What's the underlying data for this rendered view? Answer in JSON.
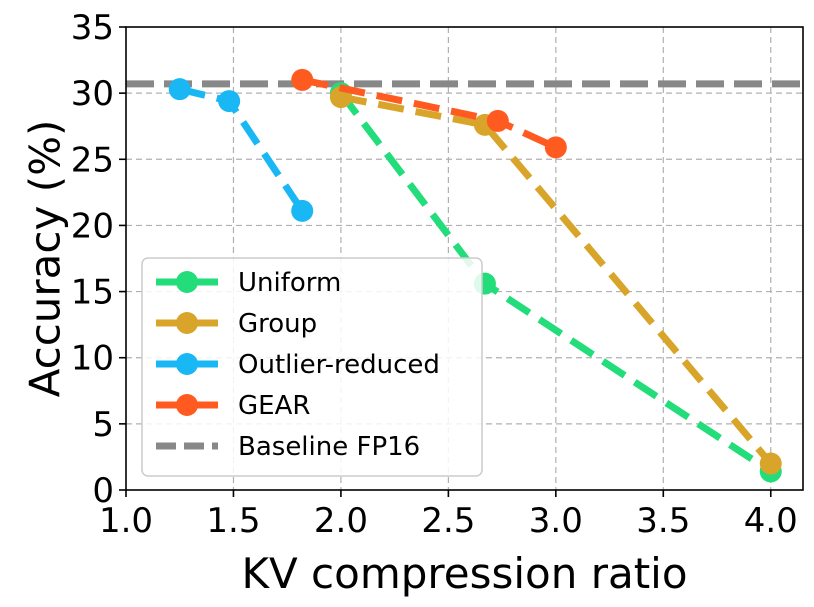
{
  "chart_data": {
    "type": "line",
    "title": "",
    "xlabel": "KV compression ratio",
    "ylabel": "Accuracy (%)",
    "xlim": [
      1.0,
      4.15
    ],
    "ylim": [
      0,
      35
    ],
    "xticks": [
      1.0,
      1.5,
      2.0,
      2.5,
      3.0,
      3.5,
      4.0
    ],
    "xtick_labels": [
      "1.0",
      "1.5",
      "2.0",
      "2.5",
      "3.0",
      "3.5",
      "4.0"
    ],
    "yticks": [
      0,
      5,
      10,
      15,
      20,
      25,
      30,
      35
    ],
    "ytick_labels": [
      "0",
      "5",
      "10",
      "15",
      "20",
      "25",
      "30",
      "35"
    ],
    "grid": true,
    "legend_position": "lower-left",
    "series": [
      {
        "name": "Uniform",
        "color": "#22dd7a",
        "x": [
          2.0,
          2.67,
          4.0
        ],
        "y": [
          30.0,
          15.6,
          1.4
        ]
      },
      {
        "name": "Group",
        "color": "#d8a52a",
        "x": [
          2.0,
          2.67,
          4.0
        ],
        "y": [
          29.7,
          27.6,
          2.0
        ]
      },
      {
        "name": "Outlier-reduced",
        "color": "#1ab7f5",
        "x": [
          1.25,
          1.48,
          1.82
        ],
        "y": [
          30.3,
          29.4,
          21.1
        ]
      },
      {
        "name": "GEAR",
        "color": "#ff5a1f",
        "x": [
          1.82,
          2.73,
          3.0
        ],
        "y": [
          31.0,
          27.9,
          25.9
        ]
      }
    ],
    "baseline": {
      "name": "Baseline FP16",
      "color": "#888888",
      "y": 30.7
    }
  }
}
